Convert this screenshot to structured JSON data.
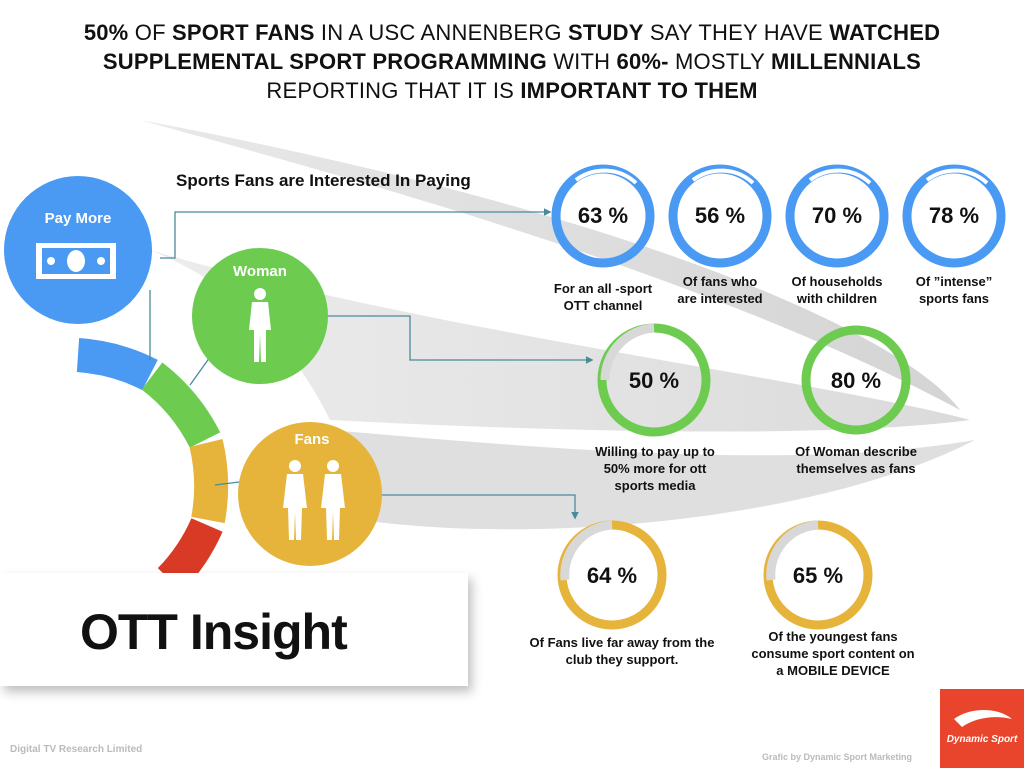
{
  "headline": {
    "p1": "50%",
    "p2": " OF ",
    "p3": "SPORT FANS",
    "p4": " IN A USC ANNENBERG ",
    "p5": "STUDY",
    "p6": " SAY THEY HAVE ",
    "p7": "WATCHED",
    "p8": "SUPPLEMENTAL SPORT PROGRAMMING",
    "p9": " WITH ",
    "p10": "60%-",
    "p11": " MOSTLY ",
    "p12": "MILLENNIALS",
    "p13": "REPORTING THAT IT IS ",
    "p14": "IMPORTANT TO THEM"
  },
  "section_title": "Sports Fans are Interested In Paying",
  "categories": {
    "pay_more": "Pay More",
    "woman": "Woman",
    "fans": "Fans"
  },
  "stats": {
    "s1": {
      "value": "63 %",
      "caption1": "For an all -sport",
      "caption2": "OTT channel",
      "color": "#4a9af3"
    },
    "s2": {
      "value": "56 %",
      "caption1": "Of fans who",
      "caption2": "are interested",
      "color": "#4a9af3"
    },
    "s3": {
      "value": "70 %",
      "caption1": "Of households",
      "caption2": "with children",
      "color": "#4a9af3"
    },
    "s4": {
      "value": "78 %",
      "caption1": "Of ”intense”",
      "caption2": "sports fans",
      "color": "#4a9af3"
    },
    "s5": {
      "value": "50 %",
      "caption1": "Willing to pay up to",
      "caption2": "50% more for ott",
      "caption3": "sports media",
      "color": "#6dcc50"
    },
    "s6": {
      "value": "80 %",
      "caption1": "Of Woman describe",
      "caption2": "themselves as fans",
      "color": "#6dcc50"
    },
    "s7": {
      "value": "64 %",
      "caption1": "Of Fans live far away from the",
      "caption2": "club they support.",
      "color": "#e6b43a"
    },
    "s8": {
      "value": "65 %",
      "caption1": "Of the youngest fans",
      "caption2": "consume sport content on",
      "caption3": "a MOBILE DEVICE",
      "color": "#e6b43a"
    }
  },
  "colors": {
    "blue": "#4a9af3",
    "green": "#6dcc50",
    "yellow": "#e6b43a",
    "red": "#d93a25",
    "logo": "#e8452c"
  },
  "title": "OTT Insight",
  "footer_left": "Digital TV Research Limited",
  "footer_right": "Grafic by Dynamic Sport Marketing",
  "logo_text": "Dynamic Sport"
}
